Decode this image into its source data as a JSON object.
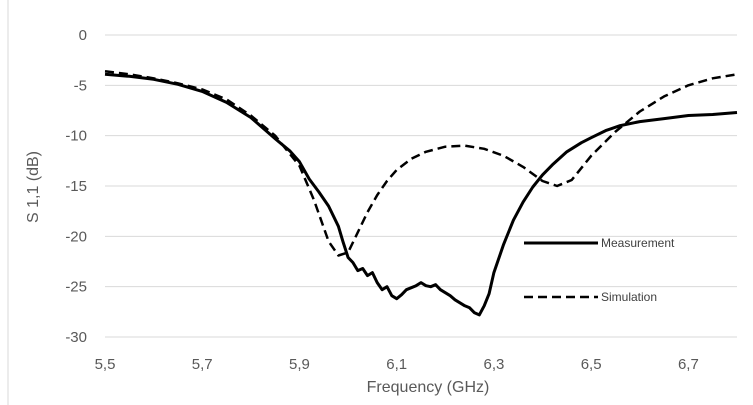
{
  "chart_data": {
    "type": "line",
    "title": "",
    "xlabel": "Frequency (GHz)",
    "ylabel": "S 1,1 (dB)",
    "xlim": [
      5.5,
      6.8
    ],
    "ylim": [
      -30,
      0
    ],
    "x_ticks": [
      "5,5",
      "5,7",
      "5,9",
      "6,1",
      "6,3",
      "6,5",
      "6,7"
    ],
    "x_tick_values": [
      5.5,
      5.7,
      5.9,
      6.1,
      6.3,
      6.5,
      6.7
    ],
    "y_ticks": [
      "0",
      "-5",
      "-10",
      "-15",
      "-20",
      "-25",
      "-30"
    ],
    "y_tick_values": [
      0,
      -5,
      -10,
      -15,
      -20,
      -25,
      -30
    ],
    "grid": "horizontal",
    "legend_position": "right",
    "series": [
      {
        "name": "Measurement",
        "style": "solid",
        "color": "#000000",
        "x": [
          5.5,
          5.55,
          5.6,
          5.65,
          5.7,
          5.75,
          5.8,
          5.85,
          5.88,
          5.9,
          5.92,
          5.94,
          5.96,
          5.98,
          5.99,
          6.0,
          6.01,
          6.02,
          6.03,
          6.04,
          6.05,
          6.06,
          6.07,
          6.08,
          6.09,
          6.1,
          6.11,
          6.12,
          6.13,
          6.14,
          6.15,
          6.16,
          6.17,
          6.18,
          6.19,
          6.2,
          6.21,
          6.22,
          6.23,
          6.24,
          6.25,
          6.26,
          6.27,
          6.28,
          6.29,
          6.3,
          6.32,
          6.34,
          6.36,
          6.38,
          6.4,
          6.42,
          6.45,
          6.48,
          6.5,
          6.53,
          6.56,
          6.6,
          6.65,
          6.7,
          6.75,
          6.8
        ],
        "y": [
          -3.9,
          -4.1,
          -4.4,
          -4.9,
          -5.6,
          -6.7,
          -8.2,
          -10.3,
          -11.5,
          -12.6,
          -14.3,
          -15.6,
          -17.0,
          -19.0,
          -20.6,
          -22.1,
          -22.6,
          -23.4,
          -23.2,
          -23.9,
          -23.6,
          -24.6,
          -25.3,
          -25.0,
          -25.9,
          -26.2,
          -25.8,
          -25.3,
          -25.1,
          -24.9,
          -24.6,
          -24.9,
          -25.0,
          -24.8,
          -25.3,
          -25.6,
          -25.9,
          -26.3,
          -26.6,
          -26.9,
          -27.1,
          -27.6,
          -27.8,
          -26.9,
          -25.7,
          -23.6,
          -20.8,
          -18.4,
          -16.6,
          -15.1,
          -13.9,
          -12.9,
          -11.6,
          -10.7,
          -10.2,
          -9.5,
          -9.0,
          -8.6,
          -8.3,
          -8.0,
          -7.9,
          -7.7
        ]
      },
      {
        "name": "Simulation",
        "style": "dashed",
        "color": "#000000",
        "x": [
          5.5,
          5.55,
          5.6,
          5.65,
          5.7,
          5.75,
          5.8,
          5.85,
          5.9,
          5.93,
          5.96,
          5.98,
          6.0,
          6.02,
          6.04,
          6.06,
          6.08,
          6.1,
          6.13,
          6.16,
          6.2,
          6.24,
          6.28,
          6.32,
          6.36,
          6.4,
          6.43,
          6.46,
          6.5,
          6.55,
          6.6,
          6.65,
          6.7,
          6.75,
          6.8
        ],
        "y": [
          -3.6,
          -3.9,
          -4.3,
          -4.8,
          -5.4,
          -6.4,
          -8.0,
          -10.0,
          -13.0,
          -16.4,
          -20.5,
          -21.9,
          -21.6,
          -19.6,
          -17.6,
          -15.9,
          -14.5,
          -13.4,
          -12.3,
          -11.6,
          -11.1,
          -11.0,
          -11.3,
          -12.0,
          -13.1,
          -14.5,
          -15.0,
          -14.4,
          -12.0,
          -9.6,
          -7.6,
          -6.1,
          -5.0,
          -4.3,
          -3.9
        ]
      }
    ]
  }
}
